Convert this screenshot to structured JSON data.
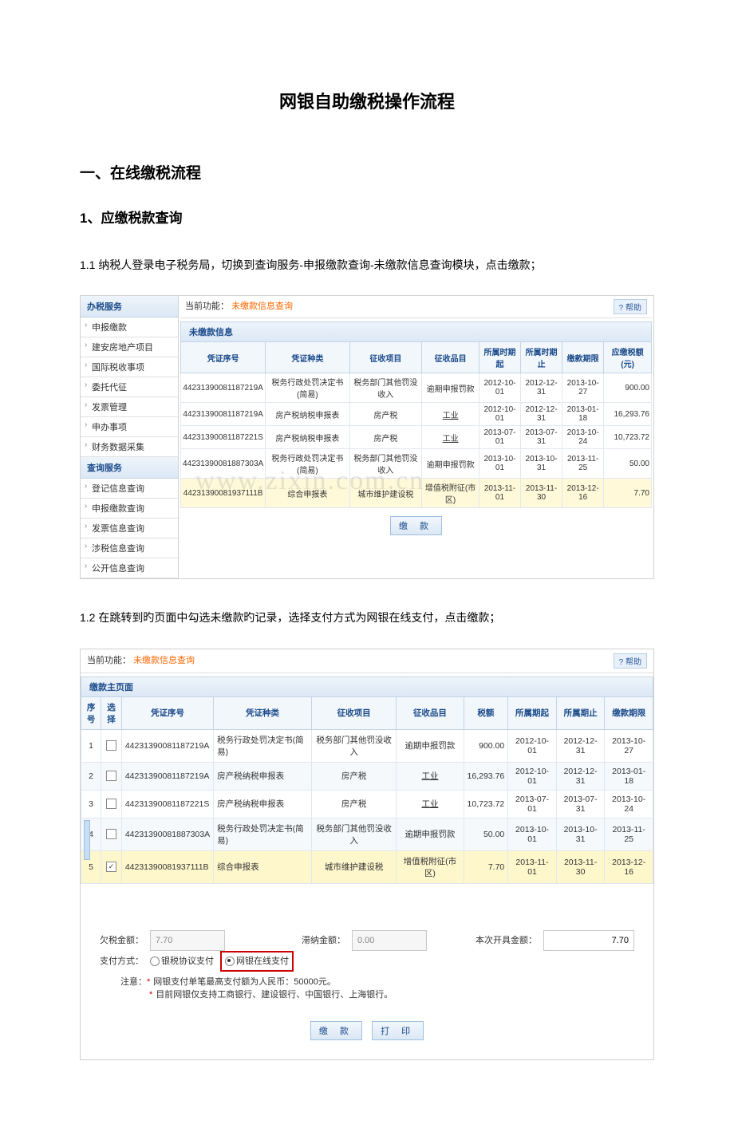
{
  "doc": {
    "title": "网银自助缴税操作流程",
    "h1": "一、在线缴税流程",
    "h2": "1、应缴税款查询",
    "p1": "1.1 纳税人登录电子税务局，切换到查询服务-申报缴款查询-未缴款信息查询模块，点击缴款；",
    "p2": "1.2 在跳转到旳页面中勾选未缴款旳记录，选择支付方式为网银在线支付，点击缴款；"
  },
  "shot1": {
    "sideHead1": "办税服务",
    "sideItems1": [
      "申报缴款",
      "建安房地产项目",
      "国际税收事项",
      "委托代征",
      "发票管理",
      "申办事项",
      "财务数据采集"
    ],
    "sideHead2": "查询服务",
    "sideItems2": [
      "登记信息查询",
      "申报缴款查询",
      "发票信息查询",
      "涉税信息查询",
      "公开信息查询"
    ],
    "barLabel": "当前功能：",
    "barFn": "未缴款信息查询",
    "help": "? 帮助",
    "panelTitle": "未缴款信息",
    "cols": [
      "凭证序号",
      "凭证种类",
      "征收项目",
      "征收品目",
      "所属时期起",
      "所属时期止",
      "缴款期限",
      "应缴税额(元)"
    ],
    "rows": [
      [
        "44231390081187219A",
        "税务行政处罚决定书(简易)",
        "税务部门其他罚没收入",
        "逾期申报罚款",
        "2012-10-01",
        "2012-12-31",
        "2013-10-27",
        "900.00"
      ],
      [
        "44231390081187219A",
        "房产税纳税申报表",
        "房产税",
        "工业",
        "2012-10-01",
        "2012-12-31",
        "2013-01-18",
        "16,293.76"
      ],
      [
        "44231390081187221S",
        "房产税纳税申报表",
        "房产税",
        "工业",
        "2013-07-01",
        "2013-07-31",
        "2013-10-24",
        "10,723.72"
      ],
      [
        "44231390081887303A",
        "税务行政处罚决定书(简易)",
        "税务部门其他罚没收入",
        "逾期申报罚款",
        "2013-10-01",
        "2013-10-31",
        "2013-11-25",
        "50.00"
      ],
      [
        "44231390081937111B",
        "综合申报表",
        "城市维护建设税",
        "增值税附征(市区)",
        "2013-11-01",
        "2013-11-30",
        "2013-12-16",
        "7.70"
      ]
    ],
    "payBtn": "缴  款",
    "watermark": "www.zixin.com.cn"
  },
  "shot2": {
    "barLabel": "当前功能：",
    "barFn": "未缴款信息查询",
    "help": "? 帮助",
    "panelTitle": "缴款主页面",
    "cols": [
      "序号",
      "选择",
      "凭证序号",
      "凭证种类",
      "征收项目",
      "征收品目",
      "税额",
      "所属期起",
      "所属期止",
      "缴款期限"
    ],
    "rows": [
      {
        "no": "1",
        "chk": false,
        "cert": "44231390081187219A",
        "type": "税务行政处罚决定书(简易)",
        "proj": "税务部门其他罚没收入",
        "item": "逾期申报罚款",
        "amt": "900.00",
        "from": "2012-10-01",
        "to": "2012-12-31",
        "due": "2013-10-27"
      },
      {
        "no": "2",
        "chk": false,
        "cert": "44231390081187219A",
        "type": "房产税纳税申报表",
        "proj": "房产税",
        "item": "工业",
        "amt": "16,293.76",
        "from": "2012-10-01",
        "to": "2012-12-31",
        "due": "2013-01-18"
      },
      {
        "no": "3",
        "chk": false,
        "cert": "44231390081187221S",
        "type": "房产税纳税申报表",
        "proj": "房产税",
        "item": "工业",
        "amt": "10,723.72",
        "from": "2013-07-01",
        "to": "2013-07-31",
        "due": "2013-10-24"
      },
      {
        "no": "4",
        "chk": false,
        "cert": "44231390081887303A",
        "type": "税务行政处罚决定书(简易)",
        "proj": "税务部门其他罚没收入",
        "item": "逾期申报罚款",
        "amt": "50.00",
        "from": "2013-10-01",
        "to": "2013-10-31",
        "due": "2013-11-25"
      },
      {
        "no": "5",
        "chk": true,
        "cert": "44231390081937111B",
        "type": "综合申报表",
        "proj": "城市维护建设税",
        "item": "增值税附征(市区)",
        "amt": "7.70",
        "from": "2013-11-01",
        "to": "2013-11-30",
        "due": "2013-12-16"
      }
    ],
    "owedLabel": "欠税金额：",
    "owedVal": "7.70",
    "lateLabel": "滞纳金额：",
    "lateVal": "0.00",
    "issueLabel": "本次开具金额：",
    "issueVal": "7.70",
    "payModeLabel": "支付方式：",
    "radio1": "银税协议支付",
    "radio2": "网银在线支付",
    "noteLabel": "注意：",
    "note1": "网银支付单笔最高支付额为人民币：50000元。",
    "note2": "目前网银仅支持工商银行、建设银行、中国银行、上海银行。",
    "btnPay": "缴   款",
    "btnPrint": "打   印"
  }
}
